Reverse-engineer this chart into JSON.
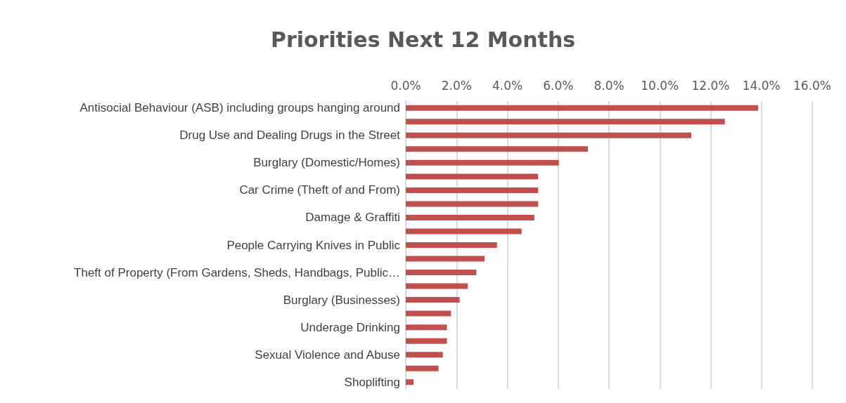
{
  "chart_data": {
    "type": "bar",
    "title": "Priorities Next 12 Months",
    "orientation": "horizontal",
    "categories": [
      "Antisocial Behaviour (ASB) including groups hanging around",
      null,
      "Drug Use and Dealing Drugs in the Street",
      null,
      "Burglary (Domestic/Homes)",
      null,
      "Car Crime (Theft of and From)",
      null,
      "Damage & Graffiti",
      null,
      "People Carrying Knives in Public",
      null,
      "Theft of Property (From Gardens, Sheds, Handbags, Public…",
      null,
      "Burglary (Businesses)",
      null,
      "Underage Drinking",
      null,
      "Sexual Violence and Abuse",
      null,
      "Shoplifting"
    ],
    "values": [
      13.87,
      12.56,
      11.24,
      7.17,
      6.02,
      5.21,
      5.21,
      5.21,
      5.06,
      4.56,
      3.59,
      3.1,
      2.78,
      2.44,
      2.12,
      1.78,
      1.62,
      1.62,
      1.46,
      1.29,
      0.31
    ],
    "color": "#c0504d",
    "xlim": [
      0,
      16
    ],
    "xticks": [
      {
        "value": 0,
        "label": "0.0%"
      },
      {
        "value": 2,
        "label": "2.0%"
      },
      {
        "value": 4,
        "label": "4.0%"
      },
      {
        "value": 6,
        "label": "6.0%"
      },
      {
        "value": 8,
        "label": "8.0%"
      },
      {
        "value": 10,
        "label": "10.0%"
      },
      {
        "value": 12,
        "label": "12.0%"
      },
      {
        "value": 14,
        "label": "14.0%"
      },
      {
        "value": 16,
        "label": "16.0%"
      }
    ],
    "grid": "x"
  }
}
